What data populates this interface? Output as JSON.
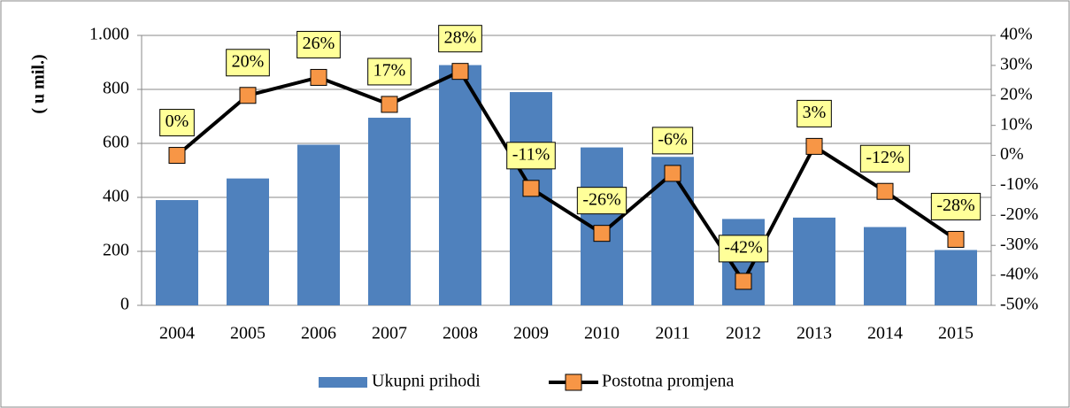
{
  "chart_data": {
    "type": "bar_line",
    "y_label": "( u mil.)",
    "categories": [
      "2004",
      "2005",
      "2006",
      "2007",
      "2008",
      "2009",
      "2010",
      "2011",
      "2012",
      "2013",
      "2014",
      "2015"
    ],
    "series": [
      {
        "name": "Ukupni prihodi",
        "color": "#4f81bd",
        "values": [
          390,
          470,
          595,
          695,
          890,
          790,
          585,
          550,
          320,
          325,
          290,
          205
        ]
      },
      {
        "name": "Postotna promjena",
        "color": "#000000",
        "marker_color": "#f79646",
        "axis": "y2",
        "values": [
          0,
          20,
          26,
          17,
          28,
          -11,
          -26,
          -6,
          -42,
          3,
          -12,
          -28
        ],
        "value_labels": [
          "0%",
          "20%",
          "26%",
          "17%",
          "28%",
          "-11%",
          "-26%",
          "-6%",
          "-42%",
          "3%",
          "-12%",
          "-28%"
        ]
      }
    ],
    "ylim": [
      0,
      1000
    ],
    "yticks": [
      0,
      200,
      400,
      600,
      800,
      {
        "value": 1000,
        "label": "1.000"
      }
    ],
    "y2lim": [
      -50,
      40
    ],
    "y2ticks": [
      {
        "value": -50,
        "label": "-50%"
      },
      {
        "value": -40,
        "label": "-40%"
      },
      {
        "value": -30,
        "label": "-30%"
      },
      {
        "value": -20,
        "label": "-20%"
      },
      {
        "value": -10,
        "label": "-10%"
      },
      {
        "value": 0,
        "label": "0%"
      },
      {
        "value": 10,
        "label": "10%"
      },
      {
        "value": 20,
        "label": "20%"
      },
      {
        "value": 30,
        "label": "30%"
      },
      {
        "value": 40,
        "label": "40%"
      }
    ],
    "grid": true,
    "legend": "bottom"
  }
}
